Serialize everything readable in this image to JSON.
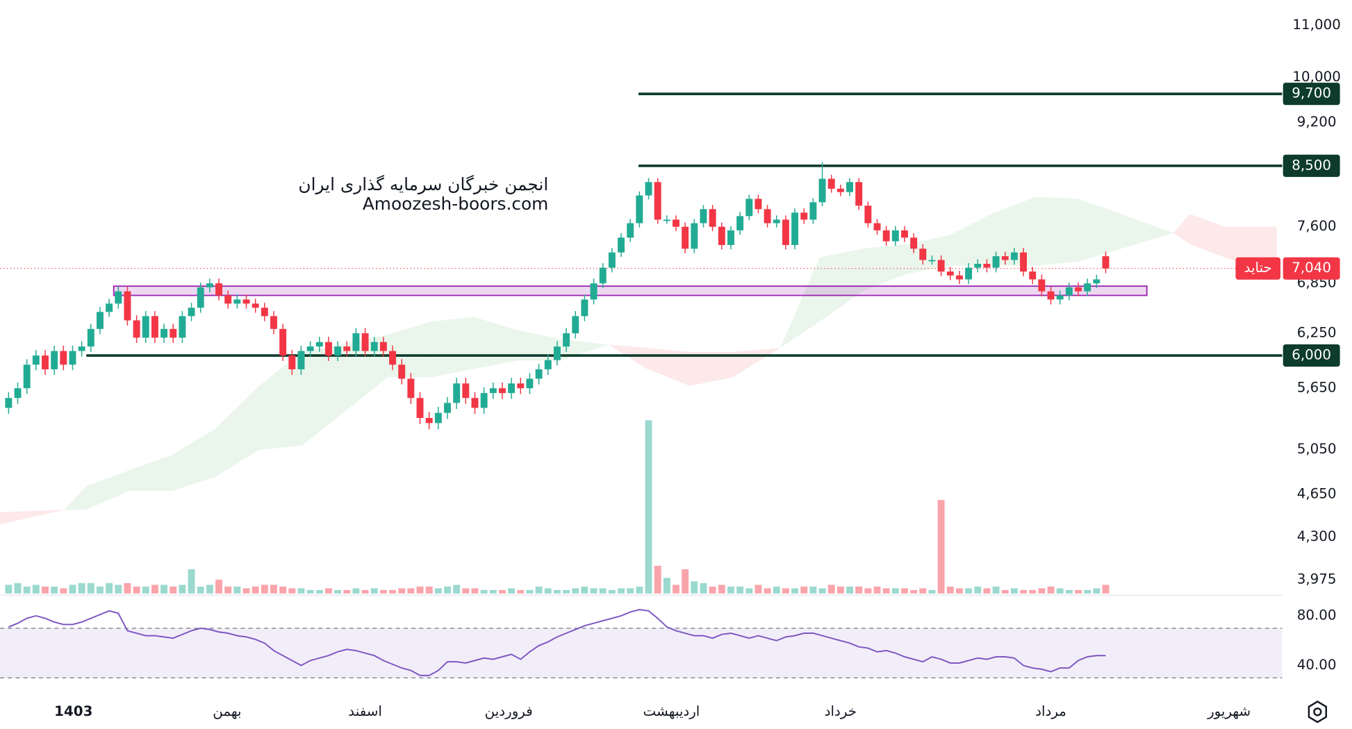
{
  "chart_data": {
    "type": "candlestick",
    "log_scale": true,
    "watermark": [
      "انجمن خبرگان سرمایه گذاری ایران",
      "Amoozesh-boors.com"
    ],
    "up_color": "#22ab94",
    "down_color": "#f23645",
    "xlim": [
      -0.94,
      139.3
    ],
    "xticks": [
      {
        "value": 7.1,
        "label": "1403"
      },
      {
        "value": 23.9,
        "label": "بهمن"
      },
      {
        "value": 39,
        "label": "اسفند"
      },
      {
        "value": 54.7,
        "label": "فروردین"
      },
      {
        "value": 72.5,
        "label": "اردیبهشت"
      },
      {
        "value": 91,
        "label": "خرداد"
      },
      {
        "value": 114,
        "label": "مرداد"
      },
      {
        "value": 133.5,
        "label": "شهریور"
      }
    ],
    "ylim": [
      3876,
      11525
    ],
    "yticks": [
      {
        "value": 11000,
        "label": "11,000"
      },
      {
        "value": 10000,
        "label": "10,000"
      },
      {
        "value": 9200,
        "label": "9,200"
      },
      {
        "value": 7600,
        "label": "7,600"
      },
      {
        "value": 6850,
        "label": "6,850"
      },
      {
        "value": 6250,
        "label": "6,250"
      },
      {
        "value": 5650,
        "label": "5,650"
      },
      {
        "value": 5050,
        "label": "5,050"
      },
      {
        "value": 4650,
        "label": "4,650"
      },
      {
        "value": 4300,
        "label": "4,300"
      },
      {
        "value": 3975,
        "label": "3,975"
      }
    ],
    "open": [
      5450,
      5550,
      5650,
      5900,
      6000,
      5850,
      6050,
      5900,
      6050,
      6100,
      6300,
      6500,
      6600,
      6750,
      6400,
      6200,
      6450,
      6200,
      6300,
      6200,
      6450,
      6550,
      6800,
      6850,
      6700,
      6600,
      6650,
      6600,
      6550,
      6450,
      6300,
      6000,
      5850,
      6050,
      6100,
      6150,
      6000,
      6100,
      6050,
      6250,
      6050,
      6150,
      6050,
      5900,
      5750,
      5550,
      5350,
      5300,
      5400,
      5500,
      5700,
      5550,
      5450,
      5600,
      5650,
      5600,
      5700,
      5650,
      5750,
      5850,
      5950,
      6100,
      6250,
      6450,
      6650,
      6850,
      7050,
      7250,
      7450,
      7650,
      8050,
      8250,
      7700,
      7700,
      7600,
      7300,
      7650,
      7850,
      7600,
      7350,
      7550,
      7750,
      8000,
      7850,
      7650,
      7700,
      7350,
      7800,
      7700,
      7950,
      8300,
      8150,
      8100,
      8250,
      7900,
      7650,
      7550,
      7400,
      7550,
      7450,
      7300,
      7150,
      7150,
      7000,
      6950,
      6900,
      7050,
      7100,
      7050,
      7200,
      7150,
      7250,
      7000,
      6900,
      6750,
      6650,
      6700,
      6800,
      6750,
      6850,
      7200
    ],
    "high": [
      5610,
      5710,
      5960,
      6060,
      6060,
      6110,
      6110,
      6110,
      6160,
      6360,
      6560,
      6660,
      6810,
      6810,
      6460,
      6510,
      6510,
      6360,
      6360,
      6510,
      6610,
      6860,
      6910,
      6910,
      6760,
      6710,
      6710,
      6660,
      6610,
      6510,
      6360,
      6060,
      6110,
      6160,
      6210,
      6210,
      6160,
      6160,
      6310,
      6310,
      6210,
      6210,
      6110,
      5960,
      5810,
      5610,
      5410,
      5460,
      5560,
      5760,
      5760,
      5610,
      5660,
      5710,
      5710,
      5760,
      5760,
      5810,
      5910,
      6010,
      6160,
      6310,
      6510,
      6710,
      6910,
      7110,
      7310,
      7510,
      7710,
      8110,
      8310,
      8310,
      7760,
      7760,
      7660,
      7710,
      7910,
      7910,
      7660,
      7610,
      7810,
      8060,
      8060,
      7910,
      7760,
      7760,
      7860,
      7860,
      8010,
      8560,
      8360,
      8210,
      8310,
      8310,
      7960,
      7710,
      7610,
      7610,
      7610,
      7510,
      7360,
      7210,
      7210,
      7060,
      7010,
      7110,
      7160,
      7160,
      7260,
      7260,
      7310,
      7310,
      7060,
      6960,
      6810,
      6760,
      6860,
      6860,
      6910,
      6960,
      7260
    ],
    "low": [
      5390,
      5490,
      5590,
      5840,
      5790,
      5790,
      5840,
      5840,
      5990,
      6040,
      6240,
      6440,
      6540,
      6340,
      6140,
      6140,
      6140,
      6140,
      6140,
      6140,
      6390,
      6490,
      6740,
      6640,
      6540,
      6540,
      6540,
      6490,
      6390,
      6240,
      5940,
      5790,
      5790,
      5990,
      6040,
      5940,
      5940,
      5990,
      5990,
      5990,
      5990,
      5990,
      5840,
      5690,
      5490,
      5290,
      5240,
      5240,
      5340,
      5440,
      5490,
      5390,
      5390,
      5540,
      5540,
      5540,
      5590,
      5590,
      5690,
      5790,
      5890,
      6040,
      6190,
      6390,
      6590,
      6790,
      6990,
      7190,
      7390,
      7590,
      7990,
      7640,
      7640,
      7540,
      7240,
      7240,
      7590,
      7540,
      7290,
      7290,
      7490,
      7690,
      7790,
      7590,
      7590,
      7290,
      7290,
      7640,
      7640,
      7890,
      8090,
      8040,
      8040,
      7840,
      7590,
      7490,
      7340,
      7340,
      7390,
      7240,
      7090,
      7090,
      6940,
      6890,
      6840,
      6840,
      6990,
      6990,
      6990,
      7090,
      7090,
      6940,
      6840,
      6690,
      6590,
      6590,
      6640,
      6690,
      6690,
      6790,
      6980
    ],
    "close": [
      5550,
      5650,
      5900,
      6000,
      5850,
      6050,
      5900,
      6050,
      6100,
      6300,
      6500,
      6600,
      6750,
      6400,
      6200,
      6450,
      6200,
      6300,
      6200,
      6450,
      6550,
      6800,
      6850,
      6700,
      6600,
      6650,
      6600,
      6550,
      6450,
      6300,
      6000,
      5850,
      6050,
      6100,
      6150,
      6000,
      6100,
      6050,
      6250,
      6050,
      6150,
      6050,
      5900,
      5750,
      5550,
      5350,
      5300,
      5400,
      5500,
      5700,
      5550,
      5450,
      5600,
      5650,
      5600,
      5700,
      5650,
      5750,
      5850,
      5950,
      6100,
      6250,
      6450,
      6650,
      6850,
      7050,
      7250,
      7450,
      7650,
      8050,
      8250,
      7700,
      7700,
      7600,
      7300,
      7650,
      7850,
      7600,
      7350,
      7550,
      7750,
      8000,
      7850,
      7650,
      7700,
      7350,
      7800,
      7700,
      7950,
      8300,
      8150,
      8100,
      8250,
      7900,
      7650,
      7550,
      7400,
      7550,
      7450,
      7300,
      7150,
      7150,
      7000,
      6950,
      6900,
      7050,
      7100,
      7050,
      7200,
      7150,
      7250,
      7000,
      6900,
      6750,
      6650,
      6700,
      6800,
      6750,
      6850,
      6900,
      7040
    ],
    "volume": [
      5,
      6,
      4,
      5,
      4,
      4,
      3,
      5,
      6,
      6,
      4,
      6,
      5,
      6,
      4,
      4,
      5,
      5,
      4,
      5,
      14,
      4,
      5,
      8,
      4,
      4,
      3,
      4,
      5,
      5,
      4,
      3,
      3,
      2,
      2,
      3,
      2,
      2,
      3,
      2,
      3,
      2,
      2,
      3,
      3,
      4,
      4,
      3,
      4,
      5,
      3,
      3,
      2,
      2,
      2,
      3,
      2,
      2,
      4,
      3,
      2,
      2,
      3,
      4,
      3,
      3,
      2,
      3,
      3,
      4,
      100,
      16,
      9,
      5,
      14,
      7,
      6,
      4,
      5,
      4,
      4,
      3,
      5,
      3,
      4,
      3,
      3,
      4,
      4,
      3,
      5,
      4,
      4,
      4,
      3,
      4,
      3,
      3,
      3,
      2,
      3,
      2,
      54,
      4,
      3,
      3,
      4,
      3,
      4,
      2,
      3,
      2,
      2,
      3,
      4,
      3,
      2,
      2,
      2,
      3,
      5
    ],
    "cloud": {
      "x": [
        -0.94,
        6.1,
        8.5,
        13.2,
        17.9,
        22.6,
        27.4,
        32.1,
        36.8,
        41.5,
        46.2,
        50.9,
        55.7,
        60.4,
        65.6,
        69.8,
        74.5,
        79.2,
        84.4,
        88.7,
        93.4,
        98.1,
        102.8,
        107.5,
        112.3,
        117,
        121.7,
        127.4,
        129.2,
        133,
        138.7
      ],
      "span_a": [
        4400,
        4520,
        4720,
        4860,
        5000,
        5245,
        5675,
        6040,
        6135,
        6235,
        6385,
        6440,
        6285,
        6185,
        6120,
        5855,
        5675,
        5765,
        6085,
        7185,
        7300,
        7360,
        7480,
        7780,
        8030,
        8000,
        7780,
        7515,
        7360,
        7185,
        6965
      ],
      "span_b": [
        4500,
        4520,
        4520,
        4680,
        4680,
        4800,
        5045,
        5085,
        5415,
        5765,
        5765,
        5855,
        5945,
        5945,
        6120,
        6085,
        6040,
        6040,
        6085,
        6385,
        6750,
        6965,
        7075,
        7075,
        7075,
        7130,
        7300,
        7515,
        7780,
        7600,
        7600
      ],
      "up_color": "#e8f5e9",
      "down_color": "#fde6e8"
    },
    "levels": [
      {
        "value": 9700,
        "label": "9,700",
        "x0": 68.9
      },
      {
        "value": 8500,
        "label": "8,500",
        "x0": 68.9
      },
      {
        "value": 6000,
        "label": "6,000",
        "x0": 8.5
      }
    ],
    "level_color": "#0d3b2c",
    "zone": {
      "low": 6700,
      "high": 6815,
      "x0": 11.5,
      "x1": 124.5,
      "color": "#9c27b0"
    },
    "last_price": {
      "value": 7040,
      "label": "7,040",
      "tag": "حتاید",
      "color": "#f23645"
    },
    "rsi": {
      "values": [
        71,
        74,
        78,
        80,
        78,
        75,
        73,
        73,
        75,
        78,
        81,
        84,
        82,
        68,
        66,
        64,
        64,
        63,
        62,
        65,
        68,
        70,
        69,
        67,
        66,
        64,
        63,
        61,
        58,
        52,
        48,
        44,
        40,
        44,
        46,
        48,
        51,
        53,
        52,
        50,
        48,
        44,
        41,
        38,
        36,
        32,
        32,
        36,
        43,
        43,
        42,
        44,
        46,
        45,
        47,
        49,
        45,
        51,
        56,
        59,
        63,
        66,
        69,
        72,
        74,
        76,
        78,
        80,
        83,
        85,
        84,
        78,
        71,
        68,
        66,
        64,
        64,
        62,
        65,
        66,
        64,
        62,
        64,
        62,
        60,
        63,
        64,
        66,
        66,
        64,
        62,
        60,
        58,
        55,
        54,
        51,
        52,
        50,
        47,
        45,
        43,
        47,
        45,
        42,
        42,
        44,
        46,
        45,
        47,
        47,
        46,
        40,
        38,
        37,
        35,
        38,
        38,
        44,
        47,
        48,
        48
      ],
      "color": "#7e57c2",
      "ylim": [
        23.4,
        95.9
      ],
      "yticks": [
        {
          "value": 80,
          "label": "80.00"
        },
        {
          "value": 40,
          "label": "40.00"
        }
      ],
      "bands": [
        30,
        70
      ]
    }
  }
}
